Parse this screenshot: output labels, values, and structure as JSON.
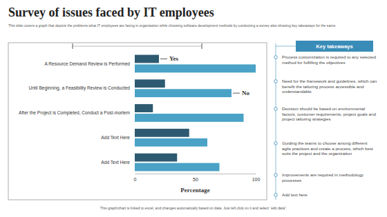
{
  "chart_data": {
    "type": "bar",
    "orientation": "horizontal",
    "title": "Survey of issues faced by IT employees",
    "subtitle": "This slide covers a graph that depicts the problems what IT employees are facing in organisation while choosing software development methods by conducting a survey  also showing key takeaways for the same",
    "xlabel": "Percentage",
    "categories": [
      "A Resource Demand Review is Performed",
      "Until Beginning, a Feasibility Review is Conducted",
      "After the Project is Completed, Conduct a Post-mortem",
      "Add Text Here",
      "Add Text Here"
    ],
    "series": [
      {
        "name": "Yes",
        "color": "#2d5a70",
        "values": [
          20,
          25,
          15,
          45,
          35
        ]
      },
      {
        "name": "No",
        "color": "#4aa2c6",
        "values": [
          100,
          80,
          90,
          60,
          70
        ]
      }
    ],
    "xlim": [
      0,
      100
    ],
    "xticks": [
      0,
      50,
      100
    ],
    "grid": false
  },
  "takeaways": {
    "title": "Key takeaways",
    "items": [
      "Process customization is required to any selected method for fulfilling the objectives",
      "Need for the framework and guidelines, which can benefit the tailoring process accessible and understandable",
      "Decision should be based on environmental factors, customer requirements, project goals and project tailoring strategies",
      "Guiding the teams to choose among different agile practices and create a process, which best suits the project and the organization",
      "Improvements  are required in methodology processes",
      "Add text here"
    ]
  },
  "note": "This graph/chart is linked to excel, and changes automatically based on data. Just left click on it and select “edit data”."
}
